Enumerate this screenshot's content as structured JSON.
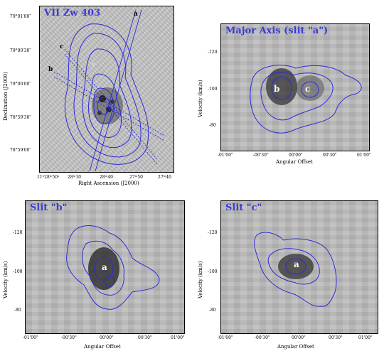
{
  "panel_image": {
    "title": "VII Zw 403",
    "xlabel": "Right Ascension (J2000)",
    "ylabel": "Declination (J2000)",
    "xticks": [
      "11ʰ28ᵐ50ˢ",
      "28ᵐ10",
      "28ᵐ40",
      "27ᵐ50",
      "27ᵐ40"
    ],
    "yticks": [
      "79°01′00″",
      "79°00′30″",
      "79°00′00″",
      "78°59′30″",
      "78°59′00″"
    ],
    "slit_labels": [
      "a",
      "b",
      "c"
    ]
  },
  "panel_a": {
    "title": "Major Axis (slit \"a\")",
    "xlabel": "Angular Offset",
    "ylabel": "Velocity (km/s)",
    "xticks": [
      "-01'00\"",
      "-00'30\"",
      "00'00\"",
      "00'30\"",
      "01'00\""
    ],
    "yticks": [
      "-120",
      "-100",
      "-80"
    ],
    "knots": [
      "b",
      "c"
    ]
  },
  "panel_b": {
    "title": "Slit \"b\"",
    "xlabel": "Angular Offset",
    "ylabel": "Velocity (km/s)",
    "xticks": [
      "-01'00\"",
      "-00'30\"",
      "00'00\"",
      "00'30\"",
      "01'00\""
    ],
    "yticks": [
      "-120",
      "-100",
      "-80"
    ],
    "knots": [
      "a"
    ]
  },
  "panel_c": {
    "title": "Slit \"c\"",
    "xlabel": "Angular Offset",
    "ylabel": "Velocity (km/s)",
    "xticks": [
      "-01'00\"",
      "-00'30\"",
      "00'00\"",
      "00'30\"",
      "01'00\""
    ],
    "yticks": [
      "-120",
      "-100",
      "-80"
    ],
    "knots": [
      "a"
    ]
  },
  "colors": {
    "contour": "#2b2bd9",
    "title": "#3a3ad6",
    "background": "#bdbdbd"
  }
}
